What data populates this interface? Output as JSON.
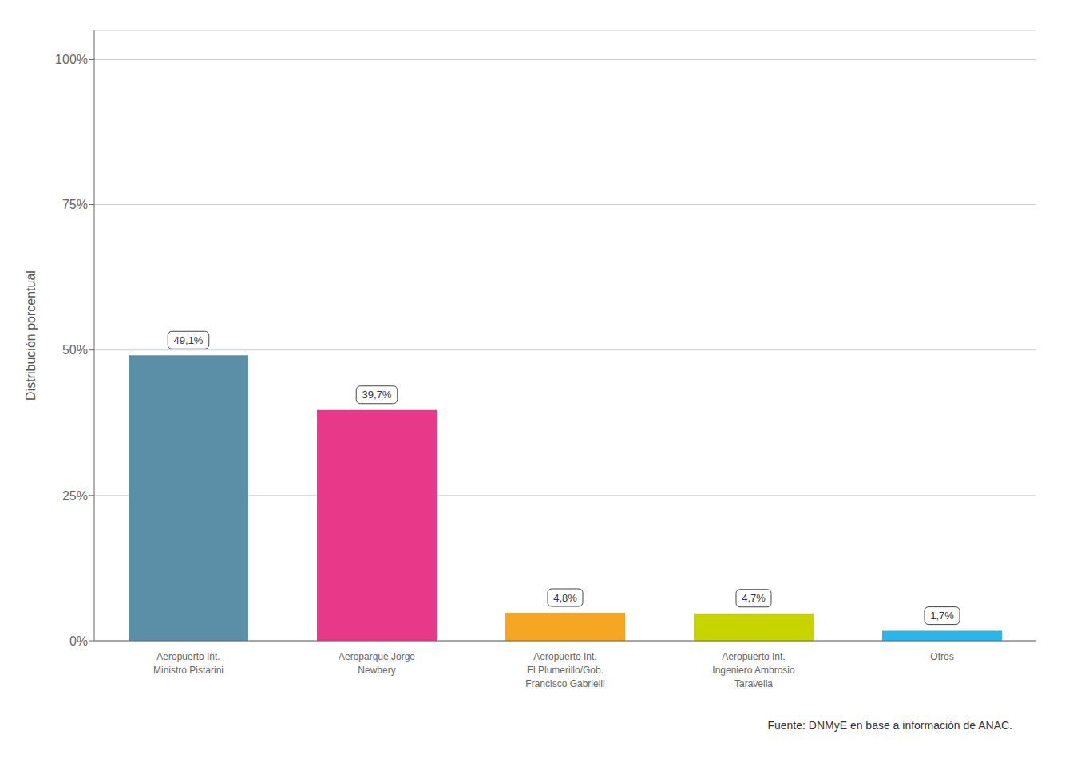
{
  "chart_data": {
    "type": "bar",
    "categories": [
      "Aeropuerto Int.\nMinistro Pistarini",
      "Aeroparque Jorge\nNewbery",
      "Aeropuerto Int.\nEl Plumerillo/Gob.\nFrancisco Gabrielli",
      "Aeropuerto Int.\nIngeniero Ambrosio\nTaravella",
      "Otros"
    ],
    "values": [
      49.1,
      39.7,
      4.8,
      4.7,
      1.7
    ],
    "value_labels": [
      "49,1%",
      "39,7%",
      "4,8%",
      "4,7%",
      "1,7%"
    ],
    "data_labels": true,
    "colors": [
      "#5b8fa8",
      "#e8388a",
      "#f5a623",
      "#c8d400",
      "#29b6e8"
    ],
    "ylabel": "Distribución porcentual",
    "ylim": [
      0,
      105
    ],
    "yticks": [
      {
        "value": 0,
        "label": "0%"
      },
      {
        "value": 25,
        "label": "25%"
      },
      {
        "value": 50,
        "label": "50%"
      },
      {
        "value": 75,
        "label": "75%"
      },
      {
        "value": 100,
        "label": "100%"
      }
    ],
    "grid": true,
    "footnote": "Fuente: DNMyE en base a información de ANAC."
  }
}
